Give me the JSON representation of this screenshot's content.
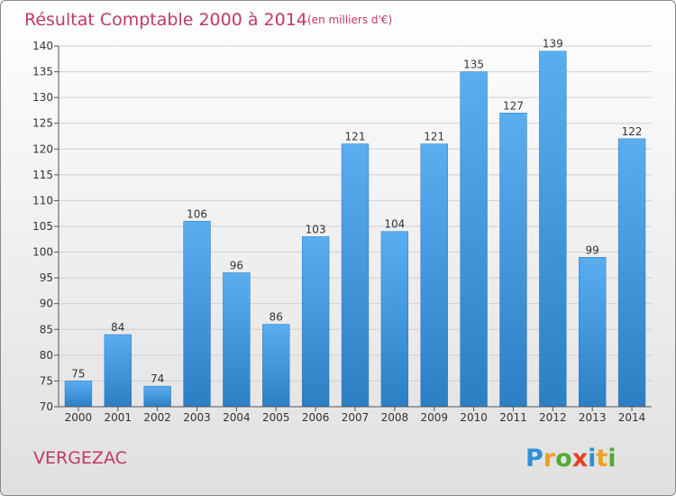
{
  "chart_data": {
    "type": "bar",
    "title": "Résultat Comptable 2000 à 2014",
    "subtitle": "(en milliers d'€)",
    "categories": [
      "2000",
      "2001",
      "2002",
      "2003",
      "2004",
      "2005",
      "2006",
      "2007",
      "2008",
      "2009",
      "2010",
      "2011",
      "2012",
      "2013",
      "2014"
    ],
    "values": [
      75,
      84,
      74,
      106,
      96,
      86,
      103,
      121,
      104,
      121,
      135,
      127,
      139,
      99,
      122
    ],
    "xlabel": "",
    "ylabel": "",
    "ylim": [
      70,
      140
    ],
    "yticks": [
      70,
      75,
      80,
      85,
      90,
      95,
      100,
      105,
      110,
      115,
      120,
      125,
      130,
      135,
      140
    ],
    "grid": true,
    "bar_color": "#3e92d8"
  },
  "commune": "VERGEZAC",
  "logo": {
    "letters": [
      "P",
      "r",
      "o",
      "x",
      "i",
      "t",
      "i"
    ],
    "colors": [
      "#2f8fd6",
      "#f0a020",
      "#55aa33",
      "#e84020",
      "#2f8fd6",
      "#f0a020",
      "#55aa33"
    ]
  }
}
